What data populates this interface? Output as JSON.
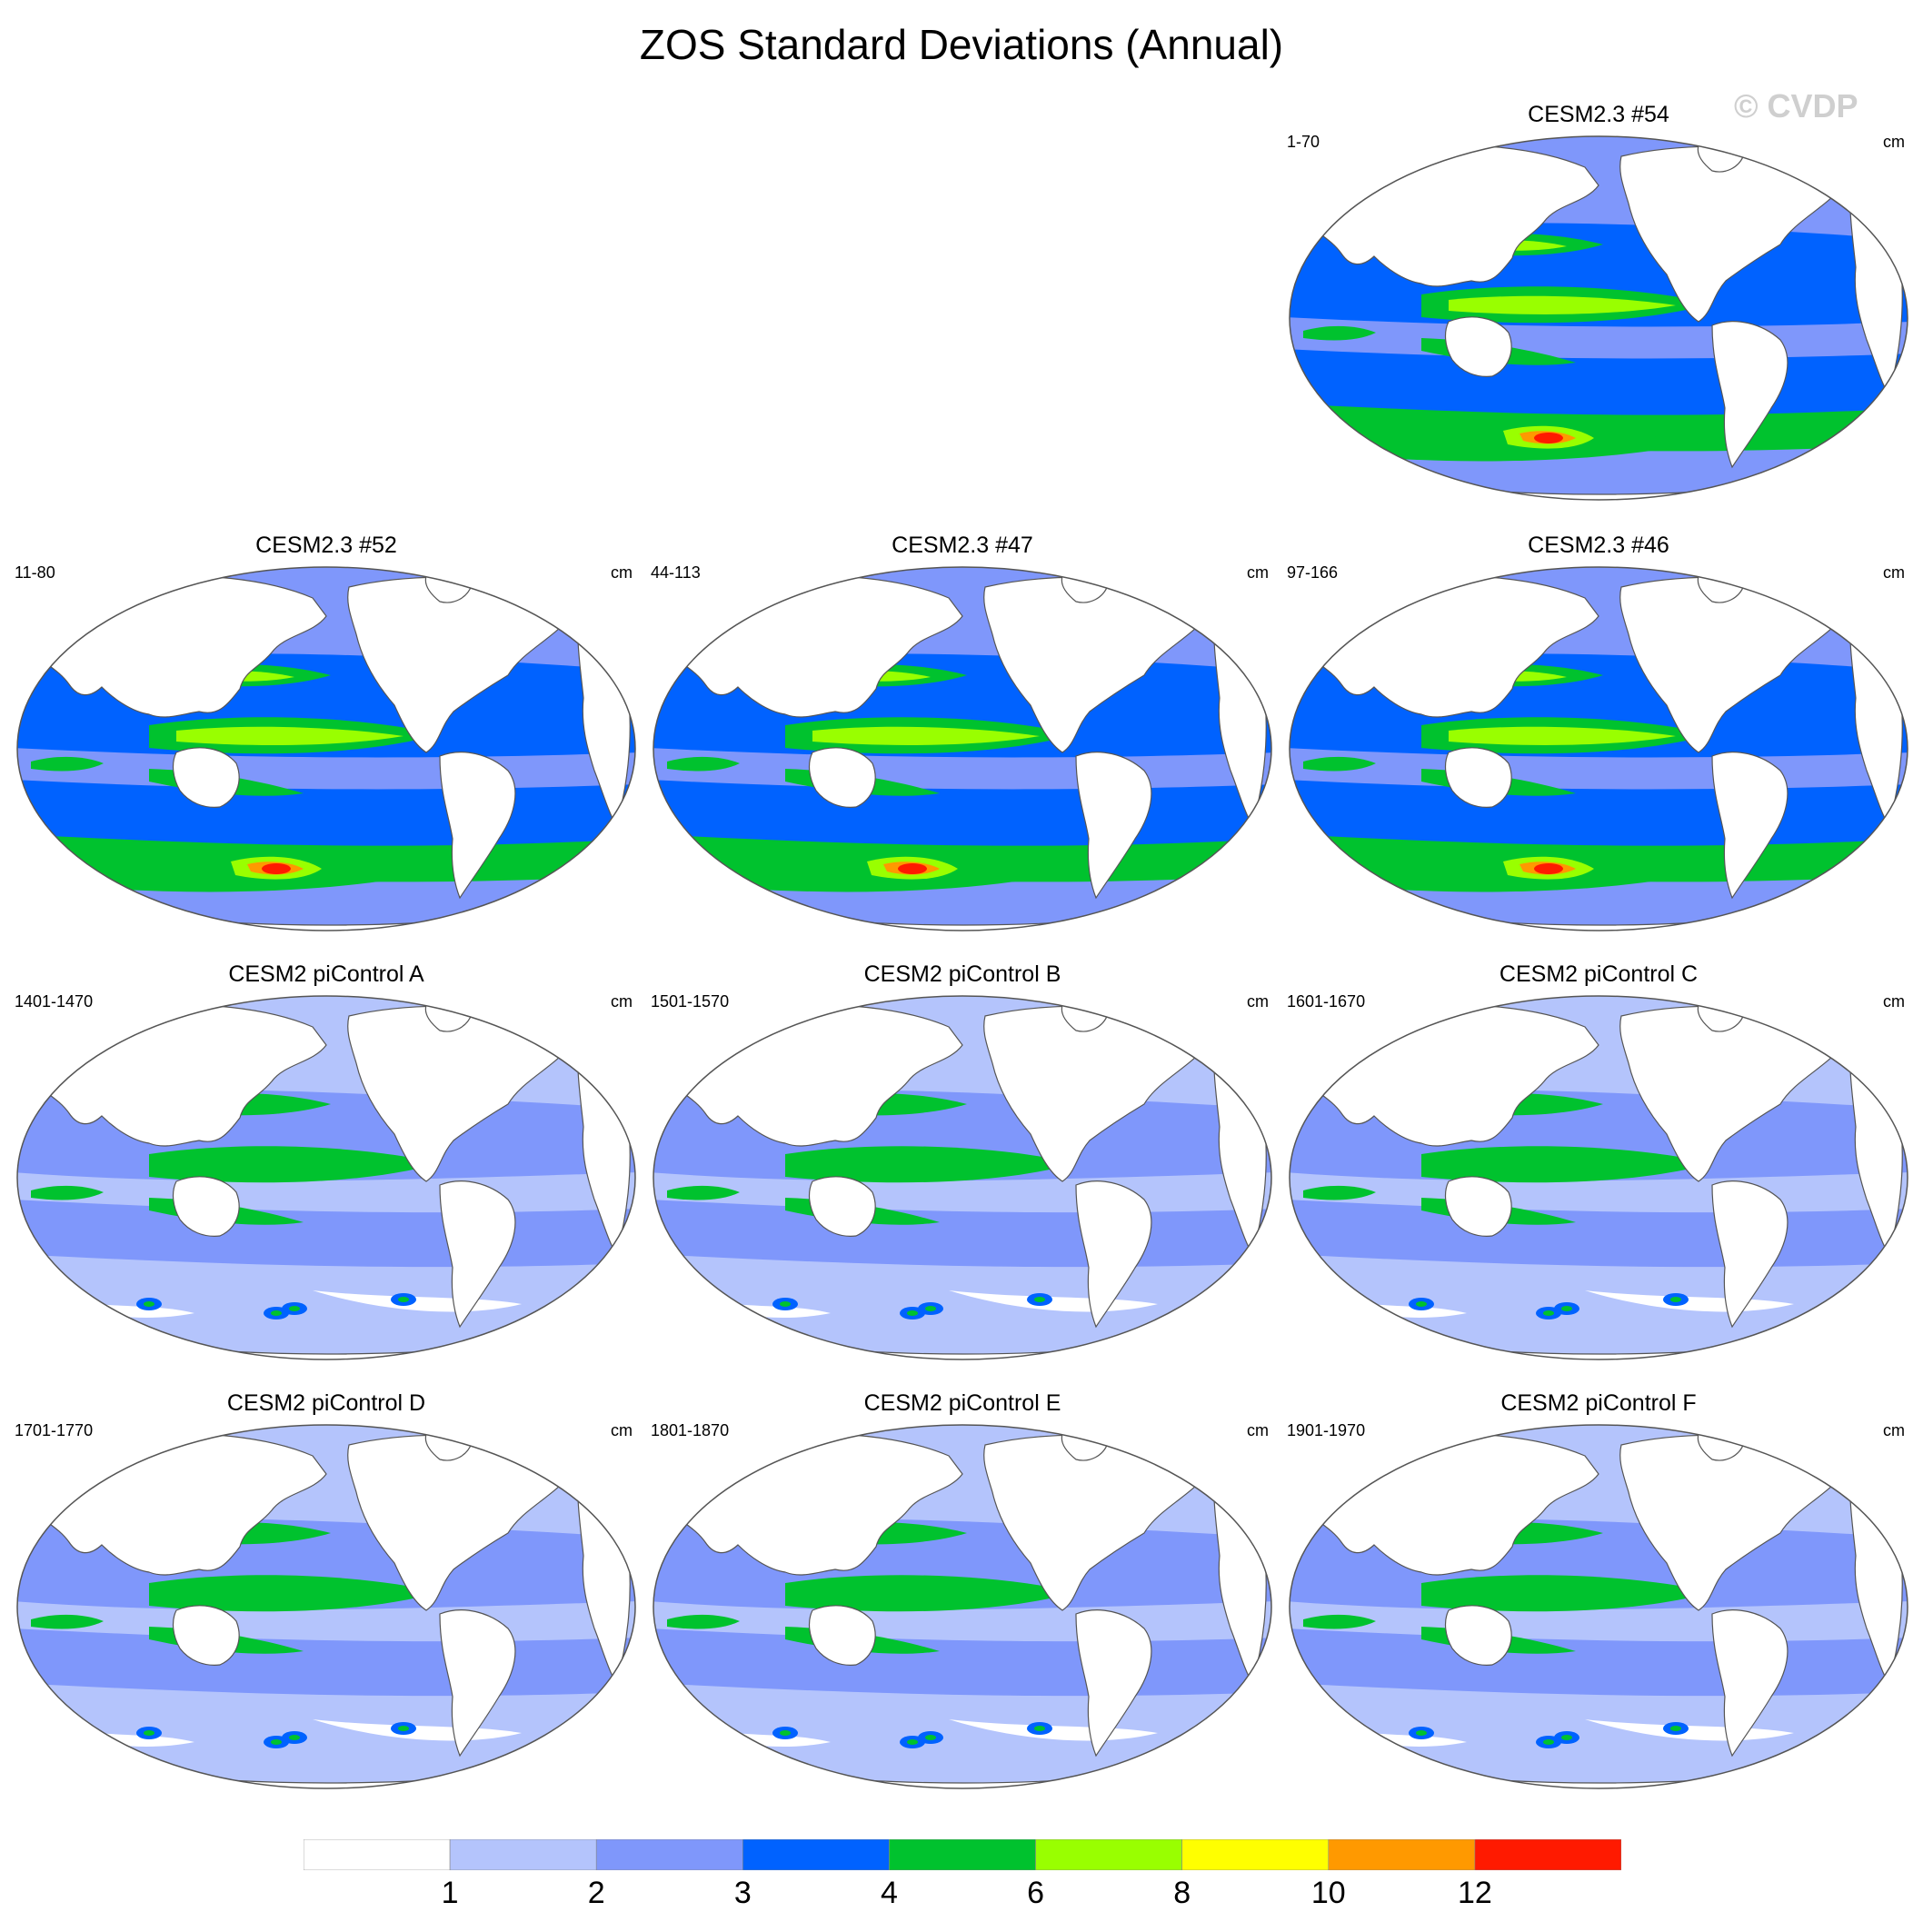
{
  "title": "ZOS Standard Deviations (Annual)",
  "watermark": "© CVDP",
  "units": "cm",
  "panels": [
    {
      "name": "CESM2.3 #54",
      "years": "1-70",
      "row": 0,
      "col": 2
    },
    {
      "name": "CESM2.3 #52",
      "years": "11-80",
      "row": 1,
      "col": 0
    },
    {
      "name": "CESM2.3 #47",
      "years": "44-113",
      "row": 1,
      "col": 1
    },
    {
      "name": "CESM2.3 #46",
      "years": "97-166",
      "row": 1,
      "col": 2
    },
    {
      "name": "CESM2 piControl A",
      "years": "1401-1470",
      "row": 2,
      "col": 0
    },
    {
      "name": "CESM2 piControl B",
      "years": "1501-1570",
      "row": 2,
      "col": 1
    },
    {
      "name": "CESM2 piControl C",
      "years": "1601-1670",
      "row": 2,
      "col": 2
    },
    {
      "name": "CESM2 piControl D",
      "years": "1701-1770",
      "row": 3,
      "col": 0
    },
    {
      "name": "CESM2 piControl E",
      "years": "1801-1870",
      "row": 3,
      "col": 1
    },
    {
      "name": "CESM2 piControl F",
      "years": "1901-1970",
      "row": 3,
      "col": 2
    }
  ],
  "colorbar": {
    "labels": [
      "1",
      "2",
      "3",
      "4",
      "6",
      "8",
      "10",
      "12"
    ],
    "colors": [
      "#ffffff",
      "#b4c4fc",
      "#7f97fb",
      "#0062ff",
      "#00c22e",
      "#99ff00",
      "#ffff00",
      "#ff9900",
      "#ff1a00"
    ]
  }
}
